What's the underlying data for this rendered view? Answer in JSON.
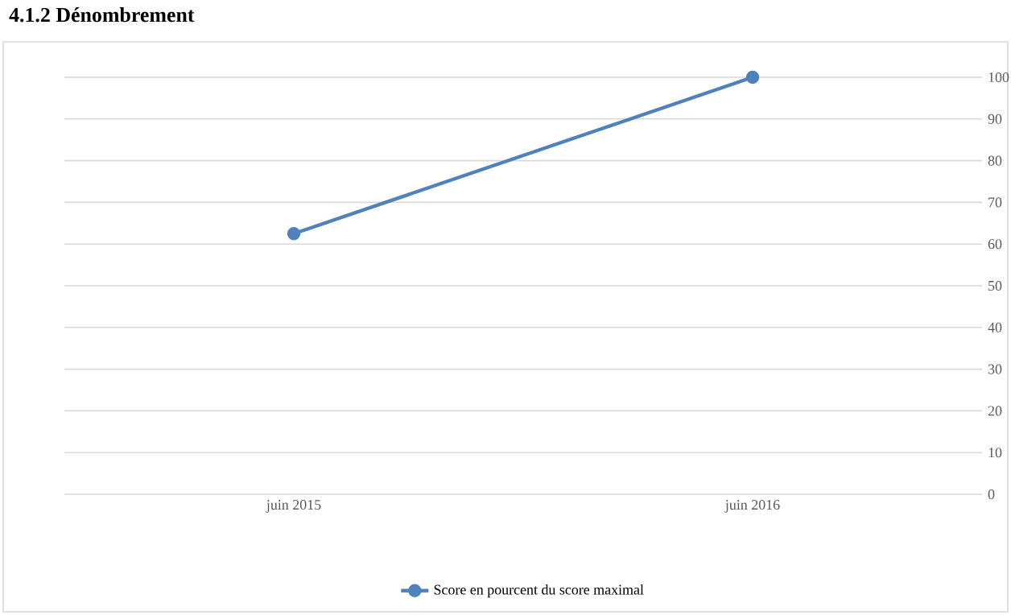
{
  "chart_data": {
    "type": "line",
    "title": "4.1.2    Dénombrement",
    "categories": [
      "juin 2015",
      "juin 2016"
    ],
    "series": [
      {
        "name": "Score en pourcent du score maximal",
        "color": "#4f81bd",
        "values": [
          62.5,
          100
        ]
      }
    ],
    "ylim": [
      0,
      100
    ],
    "yticks": [
      0,
      10,
      20,
      30,
      40,
      50,
      60,
      70,
      80,
      90,
      100
    ],
    "grid": "y",
    "legend": "bottom",
    "marker": "circle",
    "line_style": "solid"
  }
}
